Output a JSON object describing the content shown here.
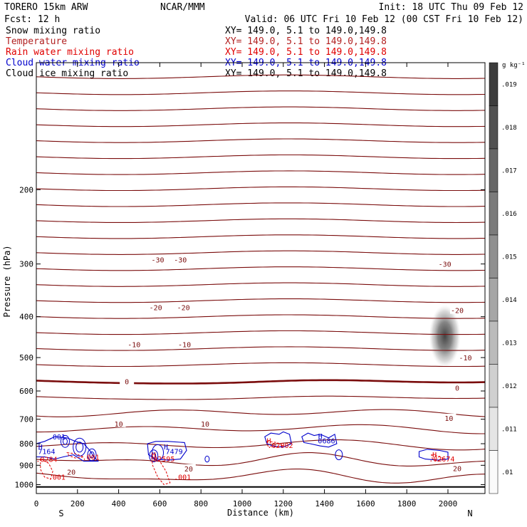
{
  "header": {
    "model": "TORERO   15km ARW",
    "center": "NCAR/MMM",
    "init": "Init: 18 UTC Thu 09 Feb 12",
    "fcst": "Fcst:   12 h",
    "valid": "Valid: 06 UTC Fri 10 Feb 12 (00 CST Fri 10 Feb 12)"
  },
  "legend": [
    {
      "label": "Snow mixing ratio",
      "xy": "XY= 149.0,  5.1 to 149.0,149.8",
      "color": "#000000",
      "xy_color": "#000000"
    },
    {
      "label": "Temperature",
      "xy": "XY= 149.0,  5.1 to 149.0,149.8",
      "color": "#b22222",
      "xy_color": "#b22222"
    },
    {
      "label": "Rain water mixing ratio",
      "xy": "XY= 149.0,  5.1 to 149.0,149.8",
      "color": "#e00000",
      "xy_color": "#e00000"
    },
    {
      "label": "Cloud water mixing ratio",
      "xy": "XY= 149.0,  5.1 to 149.0,149.8",
      "color": "#0000cc",
      "xy_color": "#0000cc"
    },
    {
      "label": "Cloud ice mixing ratio",
      "xy": "XY= 149.0,  5.1 to 149.0,149.8",
      "color": "#000000",
      "xy_color": "#000000"
    }
  ],
  "chart_data": {
    "type": "cross-section",
    "xlabel": "Distance (km)",
    "ylabel": "Pressure (hPa)",
    "xlim": [
      0,
      2180
    ],
    "ylim": [
      1050,
      100
    ],
    "y_scale": "log",
    "x_ticks": [
      0,
      200,
      400,
      600,
      800,
      1000,
      1200,
      1400,
      1600,
      1800,
      2000
    ],
    "y_ticks": [
      200,
      300,
      400,
      500,
      600,
      700,
      800,
      900,
      1000
    ],
    "x_end_labels": {
      "left": "S",
      "right": "N"
    },
    "surface_pressure": 1013,
    "temperature_labels": [
      {
        "text": "-30",
        "x": 590,
        "p": 293
      },
      {
        "text": "-30",
        "x": 700,
        "p": 293
      },
      {
        "text": "-30",
        "x": 1985,
        "p": 300
      },
      {
        "text": "-20",
        "x": 580,
        "p": 380
      },
      {
        "text": "-20",
        "x": 715,
        "p": 380
      },
      {
        "text": "-20",
        "x": 2045,
        "p": 386
      },
      {
        "text": "-10",
        "x": 475,
        "p": 465
      },
      {
        "text": "-10",
        "x": 720,
        "p": 465
      },
      {
        "text": "-10",
        "x": 2085,
        "p": 500
      },
      {
        "text": "0",
        "x": 440,
        "p": 569
      },
      {
        "text": "0",
        "x": 2045,
        "p": 590
      },
      {
        "text": "10",
        "x": 400,
        "p": 717
      },
      {
        "text": "10",
        "x": 820,
        "p": 717
      },
      {
        "text": "10",
        "x": 2005,
        "p": 695
      },
      {
        "text": "20",
        "x": 170,
        "p": 932
      },
      {
        "text": "20",
        "x": 740,
        "p": 916
      },
      {
        "text": "20",
        "x": 2045,
        "p": 914
      }
    ],
    "snow_shading": {
      "center_x": 1985,
      "center_p": 445,
      "peak": 0.019
    },
    "colorbar": {
      "unit": "g kg⁻¹",
      "ticks": [
        ".019",
        ".018",
        ".017",
        ".016",
        ".015",
        ".014",
        ".013",
        ".012",
        ".011",
        ".01"
      ]
    },
    "cloud_water_labels": [
      {
        "text": ".001",
        "x": 100,
        "p": 770
      },
      {
        "text": "H",
        "x": 20,
        "p": 812
      },
      {
        "text": "7164",
        "x": 50,
        "p": 834
      },
      {
        "text": "H",
        "x": 630,
        "p": 812
      },
      {
        "text": "7479",
        "x": 670,
        "p": 834
      },
      {
        "text": "H",
        "x": 1380,
        "p": 767
      },
      {
        "text": "0686",
        "x": 1410,
        "p": 786
      }
    ],
    "rain_water_labels": [
      {
        "text": ".0284",
        "x": 50,
        "p": 870
      },
      {
        "text": ".001",
        "x": 265,
        "p": 860
      },
      {
        "text": "H",
        "x": 570,
        "p": 848
      },
      {
        "text": ".02595",
        "x": 610,
        "p": 868
      },
      {
        "text": "H",
        "x": 1130,
        "p": 786
      },
      {
        "text": ".02902",
        "x": 1185,
        "p": 806
      },
      {
        "text": "H",
        "x": 1935,
        "p": 848
      },
      {
        "text": ".02674",
        "x": 1970,
        "p": 868
      },
      {
        "text": ".001",
        "x": 100,
        "p": 958
      },
      {
        "text": ".001",
        "x": 710,
        "p": 958
      }
    ]
  }
}
